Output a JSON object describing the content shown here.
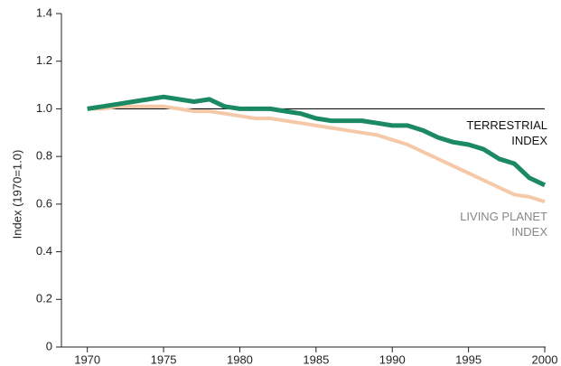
{
  "chart_data": {
    "type": "line",
    "y_label": "Index (1970=1.0)",
    "x": [
      1970,
      1971,
      1972,
      1973,
      1974,
      1975,
      1976,
      1977,
      1978,
      1979,
      1980,
      1981,
      1982,
      1983,
      1984,
      1985,
      1986,
      1987,
      1988,
      1989,
      1990,
      1991,
      1992,
      1993,
      1994,
      1995,
      1996,
      1997,
      1998,
      1999,
      2000
    ],
    "series": [
      {
        "name": "TERRESTRIAL INDEX",
        "color": "#1b8a63",
        "values": [
          1.0,
          1.01,
          1.02,
          1.03,
          1.04,
          1.05,
          1.04,
          1.03,
          1.04,
          1.01,
          1.0,
          1.0,
          1.0,
          0.99,
          0.98,
          0.96,
          0.95,
          0.95,
          0.95,
          0.94,
          0.93,
          0.93,
          0.91,
          0.88,
          0.86,
          0.85,
          0.83,
          0.79,
          0.77,
          0.71,
          0.68
        ]
      },
      {
        "name": "LIVING PLANET INDEX",
        "color": "#f5c9a8",
        "values": [
          1.0,
          1.0,
          1.01,
          1.01,
          1.01,
          1.01,
          1.0,
          0.99,
          0.99,
          0.98,
          0.97,
          0.96,
          0.96,
          0.95,
          0.94,
          0.93,
          0.92,
          0.91,
          0.9,
          0.89,
          0.87,
          0.85,
          0.82,
          0.79,
          0.76,
          0.73,
          0.7,
          0.67,
          0.64,
          0.63,
          0.61
        ]
      }
    ],
    "reference_line": 1,
    "xlim": [
      1968.3,
      2000
    ],
    "ylim": [
      0,
      1.4
    ],
    "xticks": [
      1970,
      1975,
      1980,
      1985,
      1990,
      1995,
      2000
    ],
    "yticks": [
      0,
      0.2,
      0.4,
      0.6,
      0.8,
      {
        "value": 1,
        "label": "1.0"
      },
      1.2,
      1.4
    ]
  }
}
